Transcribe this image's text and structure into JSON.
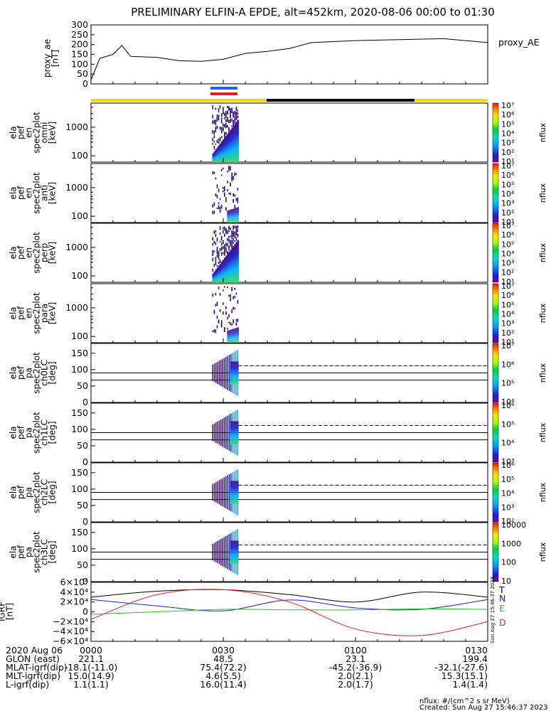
{
  "title": "PRELIMINARY ELFIN-A EPDE, alt=452km, 2020-08-06 00:00 to 01:30",
  "panels": {
    "proxy_ae": {
      "ylabel_lines": [
        "proxy_ae",
        "[nT]"
      ],
      "legend": "proxy_AE",
      "ticks": [
        "300",
        "250",
        "200",
        "150",
        "100",
        "50",
        "0"
      ]
    },
    "spectra": [
      {
        "ylabel_lines": [
          "ela",
          "pef",
          "en",
          "spec2plot",
          "omni",
          "[keV]"
        ],
        "ticks": [
          "1000",
          "100"
        ],
        "cbar_ticks": [
          "10⁷",
          "10⁶",
          "10⁵",
          "10⁴",
          "10³",
          "10²",
          "10¹"
        ],
        "cbar_label": "nflux"
      },
      {
        "ylabel_lines": [
          "ela",
          "pef",
          "en",
          "spec2plot",
          "anti",
          "[keV]"
        ],
        "ticks": [
          "1000",
          "100"
        ],
        "cbar_ticks": [
          "10⁷",
          "10⁶",
          "10⁵",
          "10⁴",
          "10³",
          "10²",
          "10¹"
        ],
        "cbar_label": "nflux"
      },
      {
        "ylabel_lines": [
          "ela",
          "pef",
          "en",
          "spec2plot",
          "perp",
          "[keV]"
        ],
        "ticks": [
          "1000",
          "100"
        ],
        "cbar_ticks": [
          "10⁷",
          "10⁶",
          "10⁵",
          "10⁴",
          "10³",
          "10²",
          "10¹"
        ],
        "cbar_label": "nflux"
      },
      {
        "ylabel_lines": [
          "ela",
          "pef",
          "en",
          "spec2plot",
          "para",
          "[keV]"
        ],
        "ticks": [
          "1000",
          "100"
        ],
        "cbar_ticks": [
          "10⁷",
          "10⁶",
          "10⁵",
          "10⁴",
          "10³",
          "10²",
          "10¹"
        ],
        "cbar_label": "nflux"
      }
    ],
    "pitch": [
      {
        "ylabel_lines": [
          "ela",
          "pef",
          "pa",
          "spec2plot",
          "ch0LC",
          "[deg]"
        ],
        "ticks": [
          "150",
          "100",
          "50",
          "0"
        ],
        "cbar_ticks": [
          "10⁷",
          "10⁶",
          "10⁵",
          "10⁴"
        ],
        "cbar_label": "nflux"
      },
      {
        "ylabel_lines": [
          "ela",
          "pef",
          "pa",
          "spec2plot",
          "ch1LC",
          "[deg]"
        ],
        "ticks": [
          "150",
          "100",
          "50",
          "0"
        ],
        "cbar_ticks": [
          "10⁶",
          "10⁵",
          "10⁴",
          "10³"
        ],
        "cbar_label": "nflux"
      },
      {
        "ylabel_lines": [
          "ela",
          "pef",
          "pa",
          "spec2plot",
          "ch2LC",
          "[deg]"
        ],
        "ticks": [
          "150",
          "100",
          "50",
          "0"
        ],
        "cbar_ticks": [
          "10⁶",
          "10⁵",
          "10⁴",
          "10³",
          "10²"
        ],
        "cbar_label": "nflux"
      },
      {
        "ylabel_lines": [
          "ela",
          "pef",
          "pa",
          "spec2plot",
          "ch3LC",
          "[deg]"
        ],
        "ticks": [
          "150",
          "100",
          "50",
          "0"
        ],
        "cbar_ticks": [
          "10000",
          "1000",
          "100",
          "10"
        ],
        "cbar_label": "nflux"
      }
    ],
    "igrf": {
      "ylabel_lines": [
        "IGRF",
        "[nT]"
      ],
      "ticks": [
        "6×10⁴",
        "4×10⁴",
        "2×10⁴",
        "0",
        "−2×10⁴",
        "−4×10⁴",
        "−6×10⁴"
      ],
      "legend": [
        {
          "label": "T",
          "color": "#000000"
        },
        {
          "label": "N",
          "color": "#1e1ee6"
        },
        {
          "label": "E",
          "color": "#19c819"
        },
        {
          "label": "D",
          "color": "#e61e1e"
        }
      ],
      "side_stamp": "Sun Aug 27 15:46:37 2023"
    }
  },
  "footer": {
    "rows": [
      {
        "label": "2020 Aug 06",
        "values": [
          "0000",
          "0030",
          "0100",
          "0130"
        ]
      },
      {
        "label": "GLON (east)",
        "values": [
          "221.1",
          "48.5",
          "23.1",
          "199.4"
        ]
      },
      {
        "label": "MLAT-igrf(dip)",
        "values": [
          "-18.1(-11.0)",
          "75.4(72.2)",
          "-45.2(-36.9)",
          "-32.1(-27.6)"
        ]
      },
      {
        "label": "MLT-igrf(dip)",
        "values": [
          "15.0(14.9)",
          "4.6(5.5)",
          "2.0(2.1)",
          "15.3(15.1)"
        ]
      },
      {
        "label": "L-igrf(dip)",
        "values": [
          "1.1(1.1)",
          "16.0(11.4)",
          "2.0(1.7)",
          "1.4(1.4)"
        ]
      }
    ],
    "units_note": "nflux: #/(cm^2 s sr MeV)",
    "created": "Created: Sun Aug 27 15:46:37 2023"
  },
  "chart_data": [
    {
      "type": "line",
      "name": "proxy_ae",
      "x_minutes": [
        0,
        2,
        5,
        7,
        9,
        15,
        20,
        25,
        30,
        35,
        40,
        45,
        50,
        60,
        70,
        80,
        90
      ],
      "values": [
        20,
        130,
        150,
        195,
        140,
        135,
        118,
        115,
        125,
        155,
        165,
        180,
        210,
        220,
        225,
        230,
        210
      ],
      "ylim": [
        0,
        300
      ]
    },
    {
      "type": "heatmap",
      "name": "spectrograms",
      "active_minutes": [
        27.5,
        33.5
      ],
      "energy_range_keV": [
        60,
        7000
      ],
      "colorbar": "rainbow"
    },
    {
      "type": "line",
      "name": "IGRF",
      "x_minutes": [
        0,
        15,
        30,
        45,
        60,
        75,
        90
      ],
      "series": [
        {
          "name": "T",
          "values": [
            30000,
            42000,
            45000,
            35000,
            20000,
            40000,
            30000
          ]
        },
        {
          "name": "N",
          "values": [
            25000,
            12000,
            2000,
            24000,
            8000,
            5000,
            25000
          ]
        },
        {
          "name": "E",
          "values": [
            -5000,
            0,
            5000,
            4000,
            4000,
            6000,
            5000
          ]
        },
        {
          "name": "D",
          "values": [
            -15000,
            35000,
            45000,
            20000,
            -35000,
            -48000,
            -20000
          ]
        }
      ],
      "ylim": [
        -60000,
        60000
      ]
    }
  ]
}
